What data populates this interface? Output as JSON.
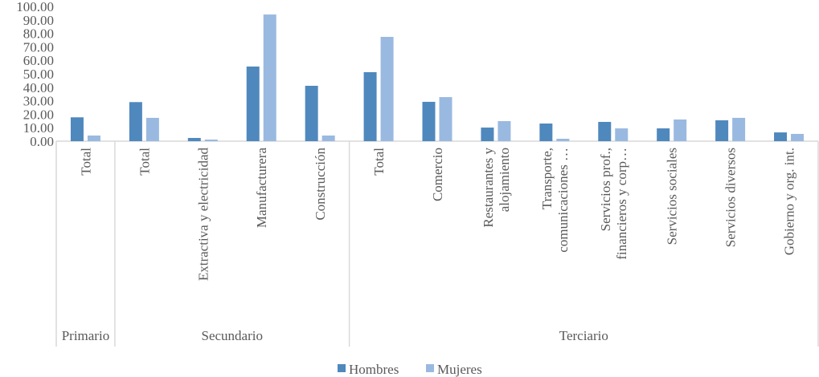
{
  "chart_data": {
    "type": "bar",
    "title": "",
    "xlabel": "",
    "ylabel": "",
    "ylim": [
      0,
      100
    ],
    "yticks": [
      "0.00",
      "10.00",
      "20.00",
      "30.00",
      "40.00",
      "50.00",
      "60.00",
      "70.00",
      "80.00",
      "90.00",
      "100.00"
    ],
    "groups": [
      {
        "label": "Primario",
        "categories": [
          [
            "Total"
          ]
        ]
      },
      {
        "label": "Secundario",
        "categories": [
          [
            "Total"
          ],
          [
            "Extractiva y electricidad"
          ],
          [
            "Manufacturera"
          ],
          [
            "Construcción"
          ]
        ]
      },
      {
        "label": "Terciario",
        "categories": [
          [
            "Total"
          ],
          [
            "Comercio"
          ],
          [
            "Restaurantes y",
            "alojamiento"
          ],
          [
            "Transporte,",
            "comunicaciones …"
          ],
          [
            "Servicios prof.,",
            "financieros y corp…"
          ],
          [
            "Servicios sociales"
          ],
          [
            "Servicios diversos"
          ],
          [
            "Gobierno y org. int."
          ]
        ]
      }
    ],
    "series": [
      {
        "name": "Hombres",
        "color": "#4f88bd",
        "values": [
          17.7,
          29.0,
          2.4,
          55.4,
          41.1,
          51.2,
          29.2,
          10.1,
          13.1,
          14.3,
          9.5,
          15.5,
          6.5
        ]
      },
      {
        "name": "Mujeres",
        "color": "#9ab9e0",
        "values": [
          4.2,
          17.3,
          1.2,
          94.0,
          4.2,
          77.4,
          32.7,
          14.9,
          1.8,
          9.5,
          16.1,
          17.3,
          5.4
        ]
      }
    ],
    "grid": false,
    "legend": "bottom"
  }
}
